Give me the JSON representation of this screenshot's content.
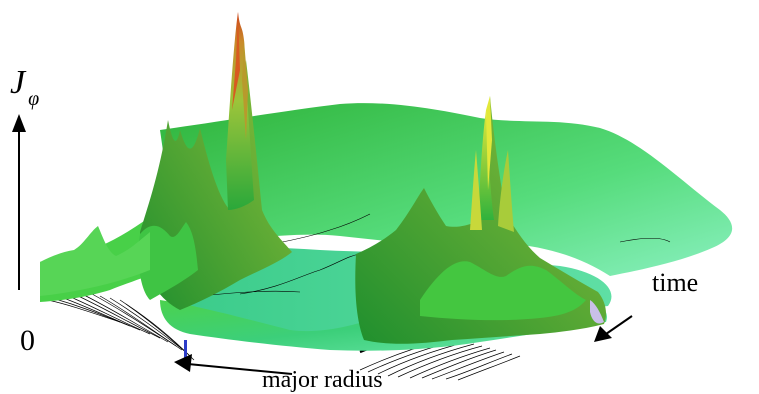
{
  "figure": {
    "y_axis_label": "J",
    "y_axis_subscript": "φ",
    "origin_label": "0",
    "time_label": "time",
    "radius_label": "major radius"
  },
  "colors": {
    "surface_light": "#7cf0b4",
    "surface_mid": "#3fd96a",
    "surface_dark": "#1e9e38",
    "peak_yellow": "#c8d42a",
    "peak_red": "#c9501c",
    "contour_black": "#000000"
  }
}
